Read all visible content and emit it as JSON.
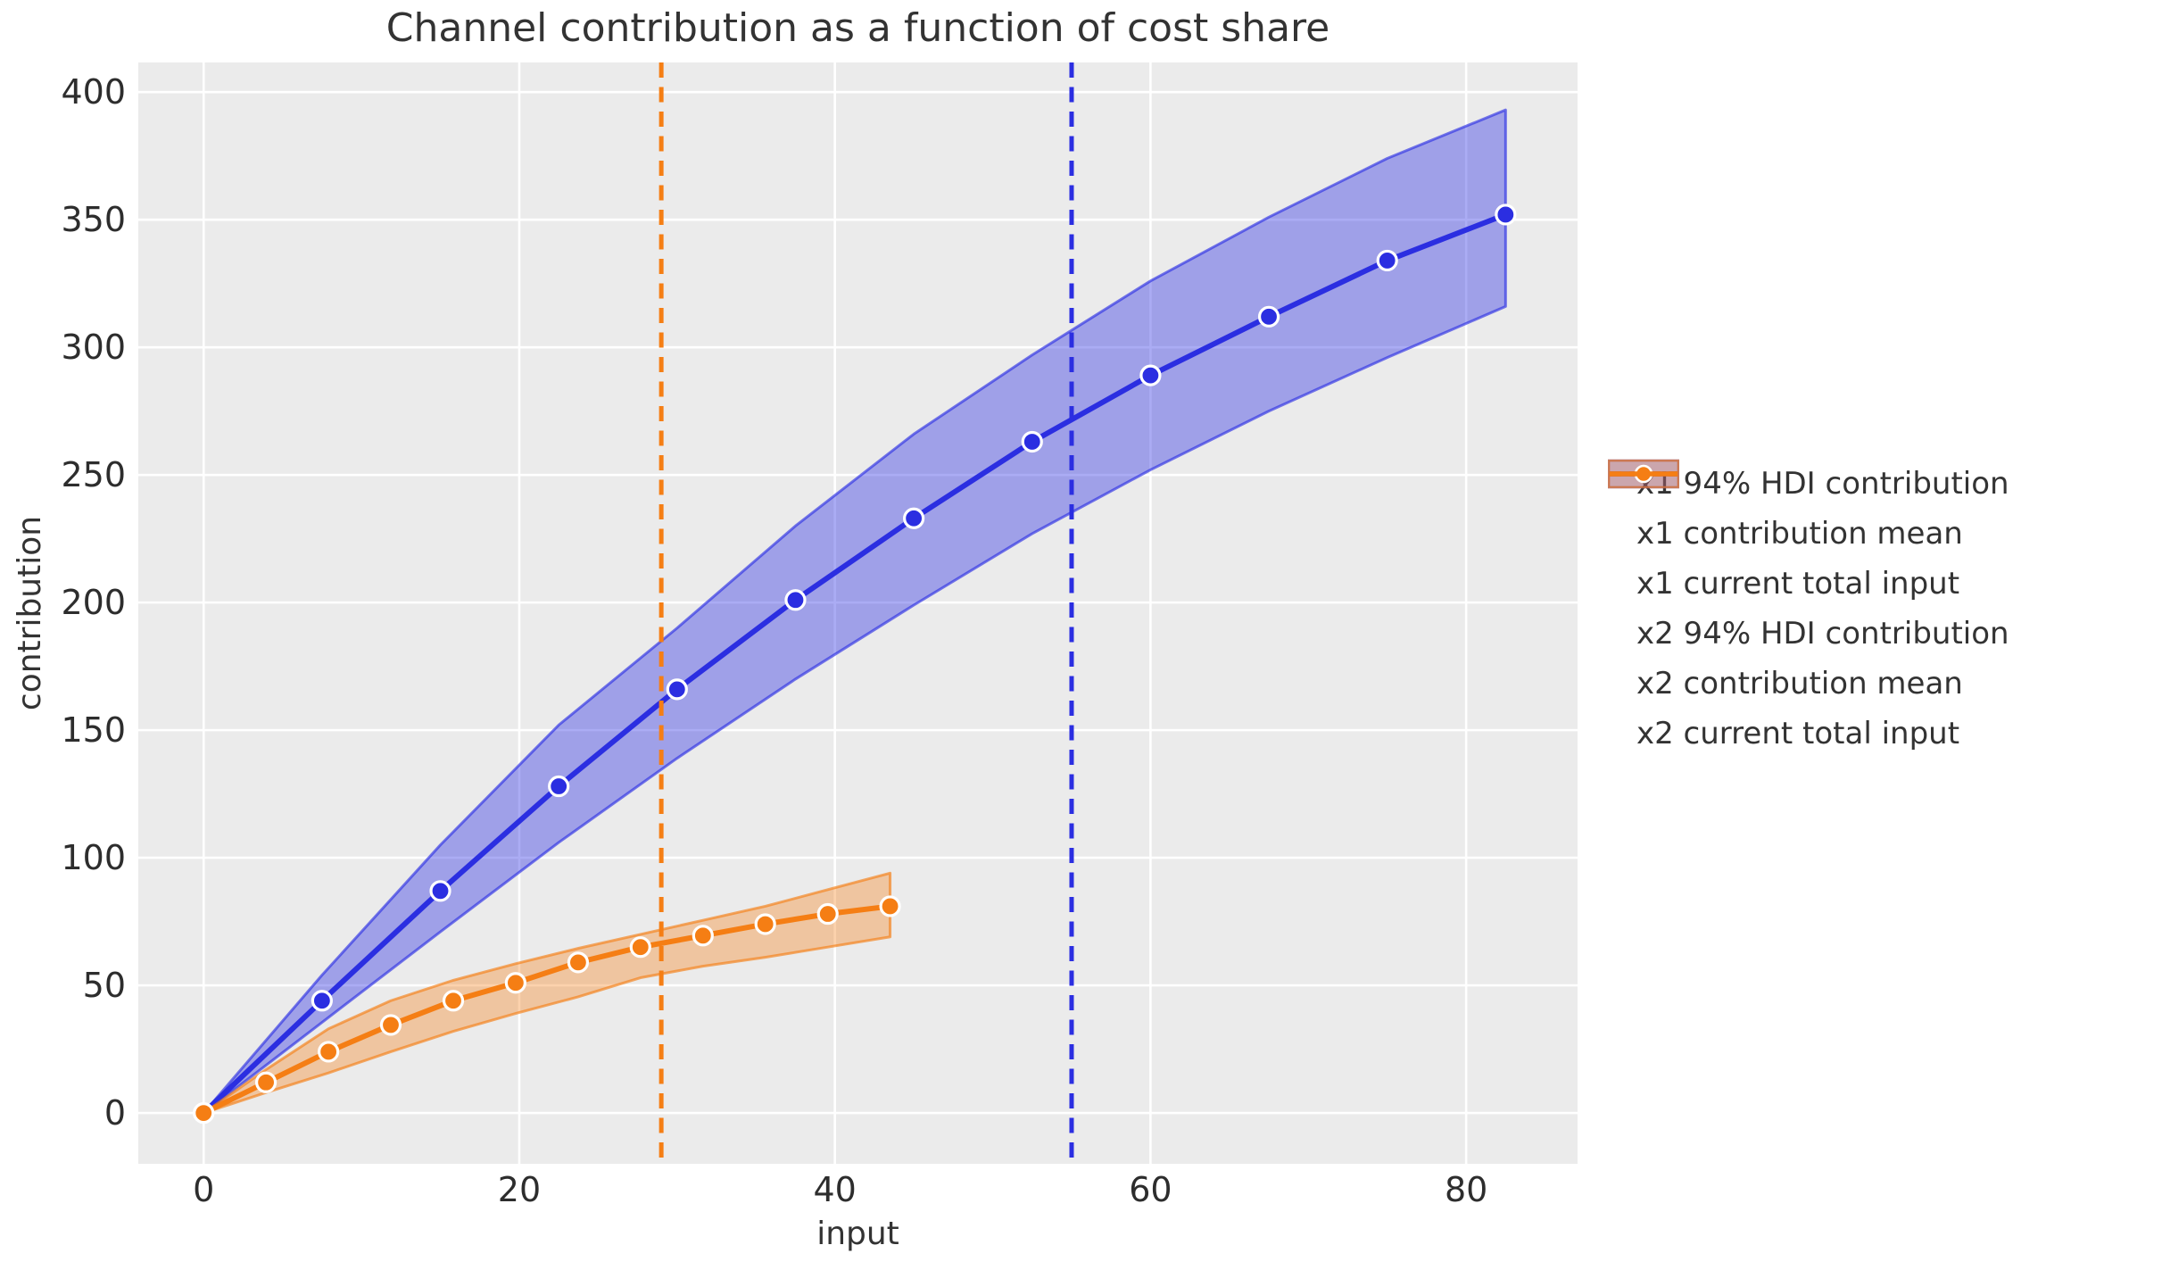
{
  "title": "Channel contribution as a function of cost share",
  "axes": {
    "xlabel": "input",
    "ylabel": "contribution"
  },
  "legend": {
    "items": [
      {
        "label": "x1 94% HDI contribution",
        "kind": "band",
        "series_index": 0
      },
      {
        "label": "x1 contribution mean",
        "kind": "line-dot",
        "series_index": 0
      },
      {
        "label": "x1 current total input",
        "kind": "dashed",
        "series_index": 0
      },
      {
        "label": "x2 94% HDI contribution",
        "kind": "band",
        "series_index": 1
      },
      {
        "label": "x2 contribution mean",
        "kind": "line-dot",
        "series_index": 1
      },
      {
        "label": "x2 current total input",
        "kind": "dashed",
        "series_index": 1
      }
    ]
  },
  "chart_data": {
    "type": "line",
    "title": "Channel contribution as a function of cost share",
    "xlabel": "input",
    "ylabel": "contribution",
    "grid": true,
    "legend_position": "right",
    "plot_bg": "#ebebeb",
    "grid_color": "#ffffff",
    "xlim": [
      -4.14,
      87.06
    ],
    "ylim": [
      -19.9,
      411.6
    ],
    "x_ticks": [
      0,
      20,
      40,
      60,
      80
    ],
    "y_ticks": [
      0,
      50,
      100,
      150,
      200,
      250,
      300,
      350,
      400
    ],
    "series": [
      {
        "name": "x1",
        "mean_label": "x1 contribution mean",
        "hdi_label": "x1 94% HDI contribution",
        "vline_label": "x1 current total input",
        "color": "#2b2ee1",
        "band_fill": "rgba(45,48,228,0.40)",
        "band_edge": "rgba(45,48,228,0.65)",
        "swatch_fill": "rgba(45,48,228,0.34)",
        "current_total_input": 55,
        "x": [
          0,
          7.5,
          15,
          22.5,
          30,
          37.5,
          45,
          52.5,
          60,
          67.5,
          75,
          82.5
        ],
        "mean": [
          0,
          44,
          87,
          128,
          166,
          201,
          233,
          263,
          289,
          312,
          334,
          352
        ],
        "hdi_high": [
          0,
          54,
          105,
          152,
          190,
          230,
          266,
          297,
          326,
          351,
          374,
          393
        ],
        "hdi_low": [
          0,
          35.5,
          71,
          106,
          139,
          170,
          199,
          227,
          252,
          275,
          296,
          316
        ]
      },
      {
        "name": "x2",
        "mean_label": "x2 contribution mean",
        "hdi_label": "x2 94% HDI contribution",
        "vline_label": "x2 current total input",
        "color": "#f57e14",
        "band_fill": "rgba(245,126,20,0.35)",
        "band_edge": "rgba(245,126,20,0.65)",
        "swatch_fill": "rgba(245,126,20,0.32)",
        "current_total_input": 29,
        "x": [
          0,
          3.95,
          7.91,
          11.86,
          15.82,
          19.77,
          23.73,
          27.68,
          31.64,
          35.59,
          39.55,
          43.5
        ],
        "mean": [
          0,
          12,
          24,
          34.5,
          44,
          51,
          59,
          65,
          69.5,
          74,
          78,
          81
        ],
        "hdi_high": [
          0,
          17,
          33,
          44,
          52,
          58.5,
          64.5,
          70,
          75.5,
          81,
          87.5,
          94
        ],
        "hdi_low": [
          0,
          8,
          15.7,
          24,
          32,
          39,
          45.5,
          53,
          57.5,
          61,
          65,
          69
        ]
      }
    ]
  }
}
